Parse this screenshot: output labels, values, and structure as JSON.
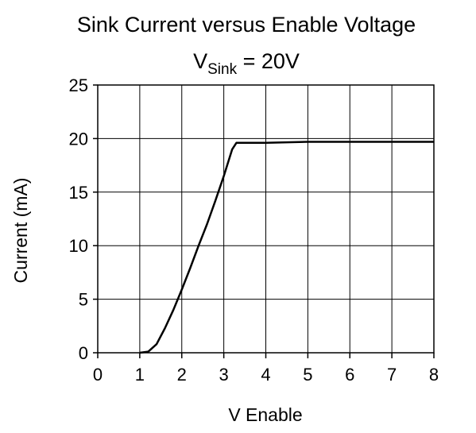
{
  "chart_data": {
    "type": "line",
    "title": "Sink Current versus Enable Voltage",
    "subtitle_parts": [
      "V",
      "Sink",
      " = 20V"
    ],
    "x_label": "V Enable",
    "y_label": "Current (mA)",
    "xlim": [
      0,
      8
    ],
    "ylim": [
      0,
      25
    ],
    "xticks": [
      0,
      1,
      2,
      3,
      4,
      5,
      6,
      7,
      8
    ],
    "yticks": [
      0,
      5,
      10,
      15,
      20,
      25
    ],
    "grid": true,
    "series": [
      {
        "name": "Sink Current",
        "color": "#000000",
        "x": [
          1.0,
          1.2,
          1.4,
          1.6,
          1.8,
          2.0,
          2.2,
          2.4,
          2.6,
          2.8,
          3.0,
          3.2,
          3.3,
          4.0,
          5.0,
          6.0,
          7.0,
          8.0
        ],
        "values": [
          0,
          0.1,
          0.8,
          2.3,
          4.0,
          5.9,
          7.9,
          10.0,
          12.0,
          14.2,
          16.5,
          19.0,
          19.6,
          19.6,
          19.7,
          19.7,
          19.7,
          19.7
        ]
      }
    ]
  }
}
